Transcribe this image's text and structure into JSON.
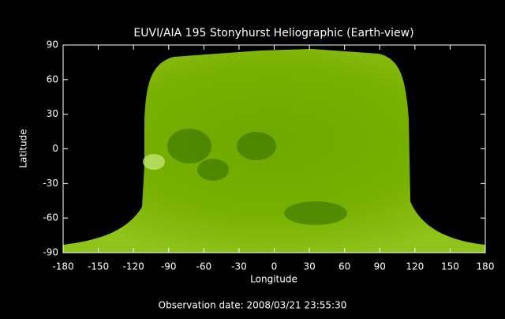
{
  "chart_data": {
    "type": "image",
    "title": "EUVI/AIA 195 Stonyhurst Heliographic (Earth-view)",
    "xlabel": "Longitude",
    "ylabel": "Latitude",
    "xlim": [
      -180,
      180
    ],
    "ylim": [
      -90,
      90
    ],
    "xticks": [
      -180,
      -150,
      -120,
      -90,
      -60,
      -30,
      0,
      30,
      60,
      90,
      120,
      150,
      180
    ],
    "yticks": [
      -90,
      -60,
      -30,
      0,
      30,
      60,
      90
    ],
    "annotation": "Observation date: 2008/03/21 23:55:30"
  }
}
